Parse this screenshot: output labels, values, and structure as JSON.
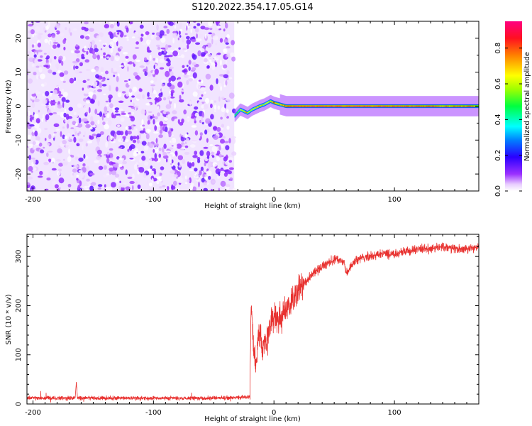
{
  "title": "S120.2022.354.17.05.G14",
  "chart_data": [
    {
      "type": "heatmap",
      "xlabel": "Height of straight line (km)",
      "ylabel": "Frequency (Hz)",
      "xlim": [
        -205,
        170
      ],
      "ylim": [
        -25,
        25
      ],
      "xticks": [
        -200,
        -100,
        0,
        100
      ],
      "xtick_labels": [
        "-200",
        "-100",
        "0",
        "100"
      ],
      "yticks": [
        -20,
        -10,
        0,
        10,
        20
      ],
      "ytick_labels": [
        "-20",
        "-10",
        "0",
        "10",
        "20"
      ],
      "colorbar": {
        "label": "Normalized spectral amplitude",
        "range": [
          0,
          0.95
        ],
        "ticks": [
          0,
          0.2,
          0.4,
          0.6,
          0.8
        ],
        "tick_labels": [
          "0.0",
          "0.2",
          "0.4",
          "0.6",
          "0.8"
        ],
        "colormap": "gist_rainbow_r"
      },
      "noise_region": {
        "x_range": [
          -205,
          -33
        ],
        "amplitude_range": [
          0.0,
          0.15
        ]
      },
      "signal_track": {
        "x": [
          -33,
          -28,
          -22,
          -18,
          -12,
          -8,
          -3,
          0,
          5,
          10,
          20,
          40,
          80,
          120,
          170
        ],
        "frequency": [
          -3,
          -1,
          -2,
          -1,
          0,
          0.5,
          1.5,
          1,
          0.5,
          0,
          0,
          0,
          0,
          0,
          0
        ],
        "amplitude": [
          0.5,
          0.6,
          0.7,
          0.6,
          0.7,
          0.6,
          0.7,
          0.8,
          0.7,
          0.85,
          0.9,
          0.9,
          0.9,
          0.85,
          0.8
        ]
      }
    },
    {
      "type": "line",
      "xlabel": "Height of straight line (km)",
      "ylabel": "SNR (10 * v/v)",
      "xlim": [
        -205,
        170
      ],
      "ylim": [
        0,
        345
      ],
      "xticks": [
        -200,
        -100,
        0,
        100
      ],
      "xtick_labels": [
        "-200",
        "-100",
        "0",
        "100"
      ],
      "yticks": [
        0,
        100,
        200,
        300
      ],
      "ytick_labels": [
        "0",
        "100",
        "200",
        "300"
      ],
      "series": [
        {
          "name": "SNR",
          "color": "#e8312f",
          "x": [
            -205,
            -165,
            -164,
            -163,
            -40,
            -20,
            -19,
            -17,
            -15,
            -12,
            -10,
            -5,
            0,
            5,
            10,
            15,
            20,
            30,
            40,
            50,
            58,
            60,
            62,
            65,
            70,
            80,
            90,
            100,
            110,
            120,
            130,
            140,
            150,
            160,
            170
          ],
          "y": [
            12,
            12,
            45,
            12,
            12,
            15,
            200,
            120,
            90,
            150,
            110,
            140,
            180,
            170,
            190,
            210,
            230,
            260,
            280,
            295,
            290,
            265,
            270,
            285,
            295,
            300,
            305,
            305,
            310,
            315,
            315,
            320,
            315,
            315,
            320
          ]
        }
      ]
    }
  ]
}
